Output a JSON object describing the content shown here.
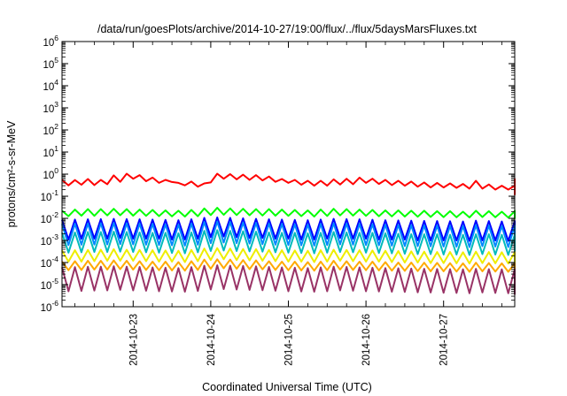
{
  "chart_data": {
    "type": "line",
    "title": "/data/run/goesPlots/archive/2014-10-27/19:00/flux/../flux/5daysMarsFluxes.txt",
    "xlabel": "Coordinated Universal Time (UTC)",
    "ylabel": "protons/cm²-s-sr-MeV",
    "y_scale": "log",
    "ylim": [
      1e-06,
      1000000.0
    ],
    "y_tick_exponents": [
      -6,
      -5,
      -4,
      -3,
      -2,
      -1,
      0,
      1,
      2,
      3,
      4,
      5,
      6
    ],
    "y_tick_base": "10",
    "x_scale": "time",
    "xlim": [
      "2014-10-22 02:00",
      "2014-10-27 22:00"
    ],
    "x_ticks": [
      "2014-10-23",
      "2014-10-24",
      "2014-10-25",
      "2014-10-26",
      "2014-10-27"
    ],
    "grid": false,
    "legend": "none",
    "sample_interval_hours": 2,
    "series": [
      {
        "color": "#ff0000",
        "values": [
          0.55,
          0.31,
          0.54,
          0.33,
          0.6,
          0.32,
          0.55,
          0.35,
          0.88,
          0.45,
          1.05,
          0.62,
          0.9,
          0.48,
          0.7,
          0.4,
          0.55,
          0.44,
          0.4,
          0.31,
          0.46,
          0.27,
          0.38,
          0.42,
          1.05,
          0.62,
          1.0,
          0.58,
          0.95,
          0.55,
          0.9,
          0.52,
          0.78,
          0.45,
          0.6,
          0.4,
          0.55,
          0.33,
          0.5,
          0.3,
          0.5,
          0.3,
          0.58,
          0.34,
          0.62,
          0.35,
          0.7,
          0.4,
          0.62,
          0.36,
          0.55,
          0.32,
          0.5,
          0.3,
          0.46,
          0.27,
          0.42,
          0.25,
          0.4,
          0.25,
          0.38,
          0.24,
          0.36,
          0.22,
          0.5,
          0.22,
          0.34,
          0.2,
          0.3,
          0.2,
          0.3,
          0.2,
          0.3,
          0.22,
          0.35,
          0.24,
          0.6,
          0.35,
          0.3,
          0.25,
          0.22,
          0.2,
          0.18,
          0.16,
          0.14,
          0.13,
          0.12,
          0.34,
          0.3,
          0.32,
          0.28,
          0.26
        ]
      },
      {
        "color": "#00ff00",
        "values": [
          0.022,
          0.0125,
          0.025,
          0.0132,
          0.026,
          0.013,
          0.026,
          0.0135,
          0.027,
          0.0138,
          0.026,
          0.0132,
          0.025,
          0.013,
          0.024,
          0.0126,
          0.023,
          0.0122,
          0.022,
          0.012,
          0.024,
          0.0125,
          0.028,
          0.014,
          0.03,
          0.0145,
          0.028,
          0.014,
          0.027,
          0.0138,
          0.026,
          0.0134,
          0.026,
          0.0132,
          0.025,
          0.013,
          0.024,
          0.0126,
          0.023,
          0.012,
          0.025,
          0.0128,
          0.027,
          0.0136,
          0.026,
          0.0133,
          0.025,
          0.013,
          0.024,
          0.0125,
          0.023,
          0.0122,
          0.023,
          0.012,
          0.022,
          0.0118,
          0.022,
          0.0116,
          0.021,
          0.0114,
          0.021,
          0.0112,
          0.02,
          0.011,
          0.022,
          0.0115,
          0.021,
          0.0112,
          0.02,
          0.0108,
          0.021,
          0.011,
          0.02,
          0.0106,
          0.019,
          0.0104,
          0.019,
          0.0102,
          0.02,
          0.0104,
          0.021,
          0.0108,
          0.022,
          0.011,
          0.02,
          0.0104,
          0.019,
          0.0102,
          0.018,
          0.01,
          0.018,
          0.0165
        ]
      },
      {
        "color": "#0000ff",
        "values": [
          0.0085,
          0.0011,
          0.0088,
          0.0012,
          0.009,
          0.0012,
          0.0092,
          0.0012,
          0.0095,
          0.0013,
          0.0092,
          0.0012,
          0.009,
          0.0012,
          0.0088,
          0.0012,
          0.0085,
          0.0011,
          0.0082,
          0.0011,
          0.009,
          0.0012,
          0.0105,
          0.0014,
          0.011,
          0.0015,
          0.0105,
          0.0014,
          0.01,
          0.0013,
          0.0095,
          0.0013,
          0.009,
          0.0012,
          0.0088,
          0.0012,
          0.0085,
          0.0011,
          0.0082,
          0.0011,
          0.0088,
          0.0012,
          0.0095,
          0.0013,
          0.0092,
          0.0012,
          0.009,
          0.0012,
          0.0086,
          0.0011,
          0.0082,
          0.0011,
          0.008,
          0.0011,
          0.0078,
          0.001,
          0.0076,
          0.001,
          0.0075,
          0.001,
          0.0074,
          0.001,
          0.0072,
          0.00095,
          0.0078,
          0.001,
          0.0075,
          0.001,
          0.0072,
          0.00095,
          0.0074,
          0.001,
          0.007,
          0.00092,
          0.0068,
          0.0009,
          0.0066,
          0.00088,
          0.007,
          0.00092,
          0.0074,
          0.00098,
          0.0076,
          0.001,
          0.0072,
          0.00095,
          0.0068,
          0.0009,
          0.0065,
          0.00086,
          0.0064,
          0.0011
        ]
      },
      {
        "color": "#0088ff",
        "values": [
          0.0055,
          0.00062,
          0.0057,
          0.00064,
          0.0058,
          0.00065,
          0.006,
          0.00066,
          0.0062,
          0.00068,
          0.006,
          0.00066,
          0.0058,
          0.00064,
          0.0056,
          0.00062,
          0.0054,
          0.0006,
          0.0052,
          0.00058,
          0.0058,
          0.00064,
          0.0068,
          0.00075,
          0.0072,
          0.0008,
          0.0068,
          0.00075,
          0.0065,
          0.00072,
          0.0062,
          0.00068,
          0.0058,
          0.00064,
          0.0056,
          0.00062,
          0.0054,
          0.0006,
          0.0052,
          0.00058,
          0.0056,
          0.00062,
          0.006,
          0.00066,
          0.0058,
          0.00064,
          0.0056,
          0.00062,
          0.0054,
          0.0006,
          0.0052,
          0.00058,
          0.005,
          0.00056,
          0.0049,
          0.00055,
          0.0048,
          0.00054,
          0.0047,
          0.00053,
          0.0046,
          0.00052,
          0.0045,
          0.0005,
          0.0049,
          0.00055,
          0.0047,
          0.00053,
          0.0045,
          0.0005,
          0.0046,
          0.00052,
          0.0044,
          0.0005,
          0.0043,
          0.00049,
          0.0042,
          0.00048,
          0.0044,
          0.0005,
          0.0046,
          0.00052,
          0.0047,
          0.00053,
          0.0045,
          0.0005,
          0.0043,
          0.00049,
          0.0041,
          0.00047,
          0.004,
          0.0006
        ]
      },
      {
        "color": "#00bbbb",
        "values": [
          0.0022,
          0.00028,
          0.0023,
          0.00029,
          0.0024,
          0.0003,
          0.0024,
          0.0003,
          0.0025,
          0.00031,
          0.0024,
          0.0003,
          0.0023,
          0.00029,
          0.0022,
          0.00028,
          0.0022,
          0.00027,
          0.0021,
          0.00026,
          0.0023,
          0.00029,
          0.0027,
          0.00033,
          0.0029,
          0.00035,
          0.0027,
          0.00033,
          0.0026,
          0.00032,
          0.0025,
          0.00031,
          0.0023,
          0.00029,
          0.0022,
          0.00028,
          0.0022,
          0.00027,
          0.0021,
          0.00026,
          0.0022,
          0.00028,
          0.0024,
          0.0003,
          0.0023,
          0.00029,
          0.0022,
          0.00028,
          0.0022,
          0.00027,
          0.0021,
          0.00026,
          0.002,
          0.00025,
          0.0019,
          0.00024,
          0.0019,
          0.00024,
          0.0019,
          0.00023,
          0.0018,
          0.00023,
          0.0018,
          0.00022,
          0.0019,
          0.00024,
          0.0019,
          0.00023,
          0.0018,
          0.00022,
          0.0018,
          0.00023,
          0.0017,
          0.00022,
          0.0017,
          0.00021,
          0.0017,
          0.00021,
          0.0017,
          0.00022,
          0.0018,
          0.00023,
          0.0019,
          0.00024,
          0.0018,
          0.00022,
          0.0017,
          0.00021,
          0.0016,
          0.0002,
          0.0016,
          0.00026
        ]
      },
      {
        "color": "#eeee00",
        "values": [
          0.00035,
          0.00011,
          0.00036,
          0.00011,
          0.00037,
          0.000115,
          0.00038,
          0.00012,
          0.0004,
          0.00012,
          0.00038,
          0.00012,
          0.00037,
          0.000115,
          0.00036,
          0.00011,
          0.00035,
          0.00011,
          0.00034,
          0.000105,
          0.00037,
          0.000115,
          0.00043,
          0.00013,
          0.00045,
          0.00014,
          0.00043,
          0.00013,
          0.00041,
          0.000125,
          0.0004,
          0.00012,
          0.00037,
          0.000115,
          0.00036,
          0.00011,
          0.00035,
          0.00011,
          0.00034,
          0.000105,
          0.00036,
          0.00011,
          0.00038,
          0.00012,
          0.00037,
          0.000115,
          0.00036,
          0.00011,
          0.00035,
          0.00011,
          0.00034,
          0.000105,
          0.00033,
          0.0001,
          0.00032,
          0.0001,
          0.00031,
          9.5e-05,
          0.0003,
          9.5e-05,
          0.0003,
          9.2e-05,
          0.00029,
          9e-05,
          0.00031,
          9.5e-05,
          0.0003,
          9.2e-05,
          0.00029,
          9e-05,
          0.00029,
          9e-05,
          0.00028,
          8.8e-05,
          0.00027,
          8.5e-05,
          0.00027,
          8.5e-05,
          0.00028,
          8.8e-05,
          0.00029,
          9e-05,
          0.0003,
          9.2e-05,
          0.00029,
          9e-05,
          0.00028,
          8.6e-05,
          0.00026,
          8.2e-05,
          0.00026,
          9e-05
        ]
      },
      {
        "color": "#ffaa00",
        "values": [
          0.00011,
          4.5e-05,
          0.000115,
          4.6e-05,
          0.00012,
          4.8e-05,
          0.00012,
          4.8e-05,
          0.000125,
          5e-05,
          0.00012,
          4.8e-05,
          0.000115,
          4.6e-05,
          0.00011,
          4.5e-05,
          0.00011,
          4.4e-05,
          0.000105,
          4.3e-05,
          0.000115,
          4.6e-05,
          0.000135,
          5.2e-05,
          0.00014,
          5.5e-05,
          0.000135,
          5.2e-05,
          0.00013,
          5e-05,
          0.000125,
          4.9e-05,
          0.000115,
          4.6e-05,
          0.00011,
          4.5e-05,
          0.00011,
          4.4e-05,
          0.000105,
          4.3e-05,
          0.00011,
          4.5e-05,
          0.00012,
          4.8e-05,
          0.000115,
          4.6e-05,
          0.00011,
          4.5e-05,
          0.00011,
          4.4e-05,
          0.000105,
          4.3e-05,
          0.0001,
          4.2e-05,
          0.0001,
          4.1e-05,
          9.8e-05,
          4e-05,
          9.6e-05,
          4e-05,
          9.4e-05,
          3.9e-05,
          9.2e-05,
          3.8e-05,
          9.8e-05,
          4e-05,
          9.5e-05,
          3.9e-05,
          9.2e-05,
          3.8e-05,
          9.2e-05,
          3.8e-05,
          9e-05,
          3.7e-05,
          8.8e-05,
          3.6e-05,
          8.7e-05,
          3.6e-05,
          9e-05,
          3.7e-05,
          9.3e-05,
          3.8e-05,
          9.5e-05,
          3.9e-05,
          9.2e-05,
          3.8e-05,
          8.8e-05,
          3.6e-05,
          8.4e-05,
          3.5e-05,
          8.3e-05,
          4e-05
        ]
      },
      {
        "color": "#993366",
        "values": [
          6e-05,
          5e-06,
          6.2e-05,
          5.2e-06,
          6.4e-05,
          5.4e-06,
          6.5e-05,
          5.5e-06,
          6.8e-05,
          5.8e-06,
          6.5e-05,
          5.5e-06,
          6.3e-05,
          5.3e-06,
          6e-05,
          5e-06,
          5.8e-05,
          4.9e-06,
          5.6e-05,
          4.8e-06,
          6.2e-05,
          5.2e-06,
          7.2e-05,
          6e-06,
          7.5e-05,
          6.3e-06,
          7.2e-05,
          6e-06,
          7e-05,
          5.8e-06,
          6.7e-05,
          5.6e-06,
          6.3e-05,
          5.3e-06,
          6e-05,
          5e-06,
          5.8e-05,
          4.9e-06,
          5.6e-05,
          4.8e-06,
          6e-05,
          5e-06,
          6.5e-05,
          5.5e-06,
          6.3e-05,
          5.3e-06,
          6e-05,
          5e-06,
          5.8e-05,
          4.9e-06,
          5.6e-05,
          4.8e-06,
          5.5e-05,
          4.7e-06,
          5.3e-05,
          4.5e-06,
          5.2e-05,
          4.4e-06,
          5.1e-05,
          4.3e-06,
          5e-05,
          4.2e-06,
          4.9e-05,
          4.1e-06,
          5.2e-05,
          4.4e-06,
          5e-05,
          4.2e-06,
          4.9e-05,
          4.1e-06,
          4.9e-05,
          4.1e-06,
          4.7e-05,
          4e-06,
          4.6e-05,
          3.9e-06,
          4.5e-05,
          3.8e-06,
          4.7e-05,
          4e-06,
          4.9e-05,
          4.1e-06,
          5e-05,
          4.2e-06,
          4.8e-05,
          4e-06,
          4.6e-05,
          3.9e-06,
          4.4e-05,
          3.7e-06,
          2.2e-05,
          8.5e-06
        ]
      }
    ]
  }
}
